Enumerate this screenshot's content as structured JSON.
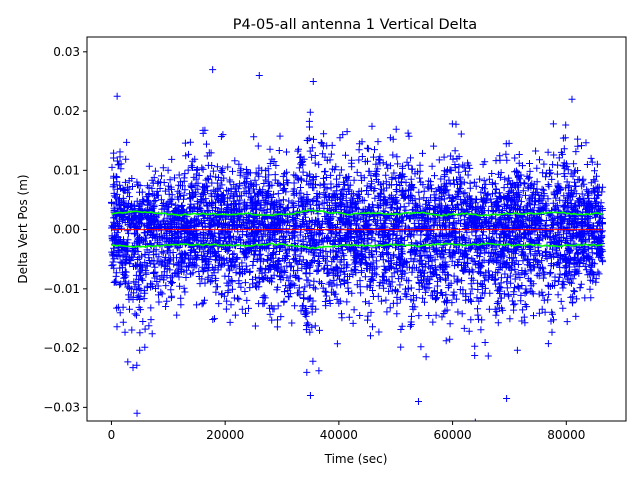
{
  "chart_data": {
    "type": "scatter",
    "title": "P4-05-all antenna 1 Vertical Delta",
    "xlabel": "Time (sec)",
    "ylabel": "Delta Vert Pos (m)",
    "xlim": [
      -4300,
      90500
    ],
    "ylim": [
      -0.0323,
      0.0325
    ],
    "x_ticks": [
      0,
      20000,
      40000,
      60000,
      80000
    ],
    "x_tick_labels": [
      "0",
      "20000",
      "40000",
      "60000",
      "80000"
    ],
    "y_ticks": [
      -0.03,
      -0.02,
      -0.01,
      0.0,
      0.01,
      0.02,
      0.03
    ],
    "y_tick_labels": [
      "−0.03",
      "−0.02",
      "−0.01",
      "0.00",
      "0.01",
      "0.02",
      "0.03"
    ],
    "grid": false,
    "series": [
      {
        "marker": "+",
        "color": "#0000ff",
        "x_range": [
          0,
          86400
        ],
        "envelope_x": [
          0,
          4000,
          8000,
          12000,
          16000,
          18000,
          20000,
          24000,
          28000,
          32000,
          35000,
          38000,
          42000,
          46000,
          50000,
          54000,
          58000,
          60000,
          62000,
          64000,
          66000,
          70000,
          74000,
          78000,
          82000,
          86400
        ],
        "envelope_upper": [
          0.019,
          0.013,
          0.012,
          0.014,
          0.021,
          0.022,
          0.016,
          0.018,
          0.016,
          0.016,
          0.023,
          0.019,
          0.017,
          0.019,
          0.017,
          0.018,
          0.016,
          0.022,
          0.018,
          0.01,
          0.014,
          0.016,
          0.016,
          0.02,
          0.017,
          0.017
        ],
        "envelope_lower": [
          -0.015,
          -0.028,
          -0.02,
          -0.016,
          -0.017,
          -0.016,
          -0.018,
          -0.018,
          -0.018,
          -0.019,
          -0.026,
          -0.022,
          -0.019,
          -0.018,
          -0.02,
          -0.025,
          -0.02,
          -0.021,
          -0.024,
          -0.028,
          -0.022,
          -0.022,
          -0.018,
          -0.021,
          -0.017,
          -0.014
        ],
        "extreme_points": [
          {
            "x": 17800,
            "y": 0.027
          },
          {
            "x": 26000,
            "y": 0.026
          },
          {
            "x": 35500,
            "y": 0.025
          },
          {
            "x": 4500,
            "y": -0.031
          },
          {
            "x": 35000,
            "y": -0.028
          },
          {
            "x": 64000,
            "y": -0.0325
          },
          {
            "x": 69500,
            "y": -0.0285
          },
          {
            "x": 54000,
            "y": -0.029
          },
          {
            "x": 1000,
            "y": 0.0225
          },
          {
            "x": 81000,
            "y": 0.022
          }
        ]
      },
      {
        "name_hidden": "upper sigma",
        "color": "#00ff00",
        "x": [
          0,
          4000,
          8000,
          12000,
          16000,
          20000,
          24000,
          28000,
          32000,
          35000,
          38000,
          42000,
          46000,
          50000,
          54000,
          58000,
          62000,
          66000,
          70000,
          74000,
          78000,
          82000,
          86400
        ],
        "y": [
          0.0026,
          0.0031,
          0.0028,
          0.0025,
          0.0027,
          0.0026,
          0.0027,
          0.0024,
          0.0027,
          0.0033,
          0.0029,
          0.0026,
          0.0028,
          0.0026,
          0.0029,
          0.0024,
          0.0027,
          0.0024,
          0.0027,
          0.0027,
          0.0029,
          0.0026,
          0.0027
        ]
      },
      {
        "name_hidden": "lower sigma",
        "color": "#00ff00",
        "x": [
          0,
          4000,
          8000,
          12000,
          16000,
          20000,
          24000,
          28000,
          32000,
          35000,
          38000,
          42000,
          46000,
          50000,
          54000,
          58000,
          62000,
          66000,
          70000,
          74000,
          78000,
          82000,
          86400
        ],
        "y": [
          -0.0026,
          -0.0029,
          -0.0027,
          -0.0025,
          -0.0026,
          -0.0026,
          -0.0027,
          -0.0024,
          -0.0027,
          -0.0031,
          -0.0029,
          -0.0026,
          -0.0027,
          -0.0025,
          -0.0028,
          -0.0024,
          -0.0026,
          -0.0024,
          -0.0026,
          -0.0026,
          -0.0028,
          -0.0026,
          -0.0026
        ]
      },
      {
        "name_hidden": "zero line",
        "color": "#ff0000",
        "x": [
          0,
          86400
        ],
        "y": [
          0,
          0
        ]
      }
    ]
  }
}
